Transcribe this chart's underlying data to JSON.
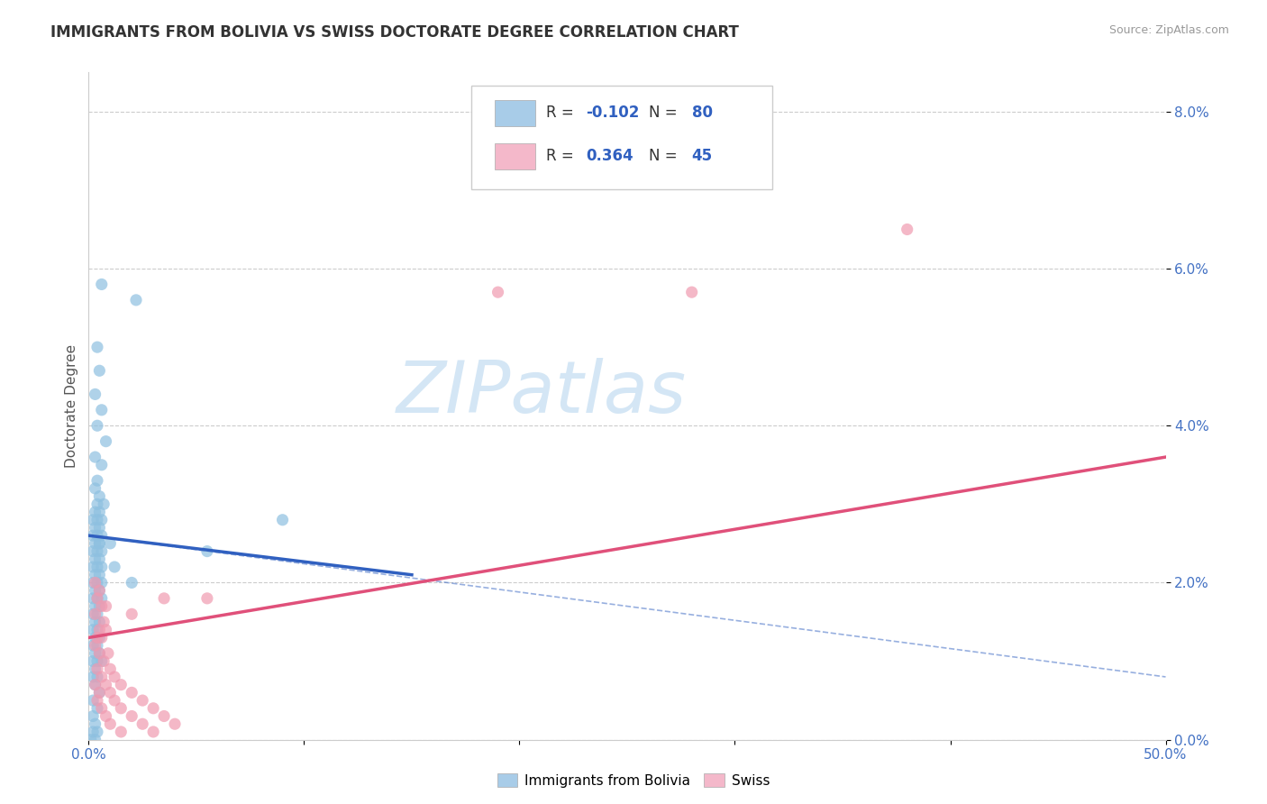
{
  "title": "IMMIGRANTS FROM BOLIVIA VS SWISS DOCTORATE DEGREE CORRELATION CHART",
  "source": "Source: ZipAtlas.com",
  "ylabel": "Doctorate Degree",
  "xlim": [
    0.0,
    0.5
  ],
  "ylim": [
    0.0,
    0.085
  ],
  "ytick_vals": [
    0.0,
    0.02,
    0.04,
    0.06,
    0.08
  ],
  "ytick_labels": [
    "0.0%",
    "2.0%",
    "4.0%",
    "6.0%",
    "8.0%"
  ],
  "xtick_vals": [
    0.0,
    0.1,
    0.2,
    0.3,
    0.4,
    0.5
  ],
  "xtick_labels": [
    "0.0%",
    "",
    "",
    "",
    "",
    "50.0%"
  ],
  "series1_color": "#8ec0e0",
  "series2_color": "#f09ab0",
  "trendline1_color": "#3060c0",
  "trendline2_color": "#e0507a",
  "legend1_color": "#a8cce8",
  "legend2_color": "#f4b8ca",
  "watermark_text": "ZIPatlas",
  "watermark_color": "#d0e4f4",
  "trendline1_x": [
    0.0,
    0.15
  ],
  "trendline1_y": [
    0.026,
    0.021
  ],
  "trendline2_x": [
    0.0,
    0.5
  ],
  "trendline2_y": [
    0.013,
    0.036
  ],
  "dashed_line_x": [
    0.0,
    0.5
  ],
  "dashed_line_y": [
    0.026,
    0.008
  ],
  "bolivia_points": [
    [
      0.006,
      0.058
    ],
    [
      0.022,
      0.056
    ],
    [
      0.004,
      0.05
    ],
    [
      0.005,
      0.047
    ],
    [
      0.003,
      0.044
    ],
    [
      0.006,
      0.042
    ],
    [
      0.004,
      0.04
    ],
    [
      0.008,
      0.038
    ],
    [
      0.003,
      0.036
    ],
    [
      0.006,
      0.035
    ],
    [
      0.004,
      0.033
    ],
    [
      0.003,
      0.032
    ],
    [
      0.005,
      0.031
    ],
    [
      0.004,
      0.03
    ],
    [
      0.007,
      0.03
    ],
    [
      0.003,
      0.029
    ],
    [
      0.005,
      0.029
    ],
    [
      0.002,
      0.028
    ],
    [
      0.004,
      0.028
    ],
    [
      0.006,
      0.028
    ],
    [
      0.003,
      0.027
    ],
    [
      0.005,
      0.027
    ],
    [
      0.002,
      0.026
    ],
    [
      0.004,
      0.026
    ],
    [
      0.006,
      0.026
    ],
    [
      0.003,
      0.025
    ],
    [
      0.005,
      0.025
    ],
    [
      0.002,
      0.024
    ],
    [
      0.004,
      0.024
    ],
    [
      0.006,
      0.024
    ],
    [
      0.003,
      0.023
    ],
    [
      0.005,
      0.023
    ],
    [
      0.002,
      0.022
    ],
    [
      0.004,
      0.022
    ],
    [
      0.006,
      0.022
    ],
    [
      0.003,
      0.021
    ],
    [
      0.005,
      0.021
    ],
    [
      0.002,
      0.02
    ],
    [
      0.004,
      0.02
    ],
    [
      0.006,
      0.02
    ],
    [
      0.003,
      0.019
    ],
    [
      0.005,
      0.019
    ],
    [
      0.002,
      0.018
    ],
    [
      0.004,
      0.018
    ],
    [
      0.006,
      0.018
    ],
    [
      0.003,
      0.017
    ],
    [
      0.005,
      0.017
    ],
    [
      0.002,
      0.016
    ],
    [
      0.004,
      0.016
    ],
    [
      0.003,
      0.015
    ],
    [
      0.005,
      0.015
    ],
    [
      0.002,
      0.014
    ],
    [
      0.004,
      0.014
    ],
    [
      0.003,
      0.013
    ],
    [
      0.005,
      0.013
    ],
    [
      0.002,
      0.012
    ],
    [
      0.004,
      0.012
    ],
    [
      0.003,
      0.011
    ],
    [
      0.005,
      0.011
    ],
    [
      0.002,
      0.01
    ],
    [
      0.004,
      0.01
    ],
    [
      0.006,
      0.01
    ],
    [
      0.003,
      0.009
    ],
    [
      0.002,
      0.008
    ],
    [
      0.004,
      0.008
    ],
    [
      0.003,
      0.007
    ],
    [
      0.005,
      0.006
    ],
    [
      0.002,
      0.005
    ],
    [
      0.004,
      0.004
    ],
    [
      0.002,
      0.003
    ],
    [
      0.003,
      0.002
    ],
    [
      0.004,
      0.001
    ],
    [
      0.002,
      0.001
    ],
    [
      0.001,
      0.0
    ],
    [
      0.003,
      0.0
    ],
    [
      0.09,
      0.028
    ],
    [
      0.055,
      0.024
    ],
    [
      0.005,
      0.025
    ],
    [
      0.01,
      0.025
    ],
    [
      0.012,
      0.022
    ],
    [
      0.02,
      0.02
    ]
  ],
  "swiss_points": [
    [
      0.003,
      0.02
    ],
    [
      0.005,
      0.019
    ],
    [
      0.004,
      0.018
    ],
    [
      0.006,
      0.017
    ],
    [
      0.003,
      0.016
    ],
    [
      0.007,
      0.015
    ],
    [
      0.005,
      0.014
    ],
    [
      0.008,
      0.014
    ],
    [
      0.004,
      0.013
    ],
    [
      0.006,
      0.013
    ],
    [
      0.003,
      0.012
    ],
    [
      0.009,
      0.011
    ],
    [
      0.005,
      0.011
    ],
    [
      0.007,
      0.01
    ],
    [
      0.004,
      0.009
    ],
    [
      0.01,
      0.009
    ],
    [
      0.006,
      0.008
    ],
    [
      0.012,
      0.008
    ],
    [
      0.003,
      0.007
    ],
    [
      0.008,
      0.007
    ],
    [
      0.015,
      0.007
    ],
    [
      0.005,
      0.006
    ],
    [
      0.01,
      0.006
    ],
    [
      0.02,
      0.006
    ],
    [
      0.004,
      0.005
    ],
    [
      0.012,
      0.005
    ],
    [
      0.025,
      0.005
    ],
    [
      0.006,
      0.004
    ],
    [
      0.015,
      0.004
    ],
    [
      0.03,
      0.004
    ],
    [
      0.008,
      0.003
    ],
    [
      0.02,
      0.003
    ],
    [
      0.035,
      0.003
    ],
    [
      0.01,
      0.002
    ],
    [
      0.025,
      0.002
    ],
    [
      0.04,
      0.002
    ],
    [
      0.015,
      0.001
    ],
    [
      0.03,
      0.001
    ],
    [
      0.008,
      0.017
    ],
    [
      0.02,
      0.016
    ],
    [
      0.035,
      0.018
    ],
    [
      0.055,
      0.018
    ],
    [
      0.28,
      0.057
    ],
    [
      0.38,
      0.065
    ],
    [
      0.19,
      0.057
    ]
  ]
}
